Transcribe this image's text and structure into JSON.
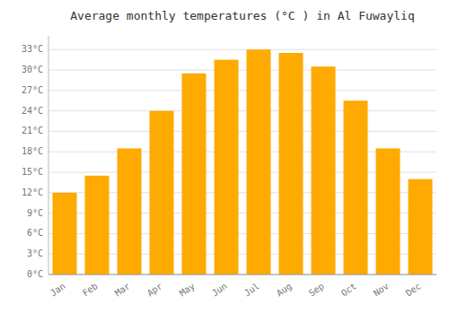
{
  "chart_data": {
    "type": "bar",
    "title": "Average monthly temperatures (°C ) in Al Fuwayliq",
    "categories": [
      "Jan",
      "Feb",
      "Mar",
      "Apr",
      "May",
      "Jun",
      "Jul",
      "Aug",
      "Sep",
      "Oct",
      "Nov",
      "Dec"
    ],
    "values": [
      12.0,
      14.5,
      18.5,
      24.0,
      29.5,
      31.5,
      33.0,
      32.5,
      30.5,
      25.5,
      18.5,
      14.0
    ],
    "color": "#FFAA00",
    "ylim": [
      0,
      35
    ],
    "yticks": [
      {
        "value": 0,
        "label": "0°C"
      },
      {
        "value": 3,
        "label": "3°C"
      },
      {
        "value": 6,
        "label": "6°C"
      },
      {
        "value": 9,
        "label": "9°C"
      },
      {
        "value": 12,
        "label": "12°C"
      },
      {
        "value": 15,
        "label": "15°C"
      },
      {
        "value": 18,
        "label": "18°C"
      },
      {
        "value": 21,
        "label": "21°C"
      },
      {
        "value": 24,
        "label": "24°C"
      },
      {
        "value": 27,
        "label": "27°C"
      },
      {
        "value": 30,
        "label": "30°C"
      },
      {
        "value": 33,
        "label": "33°C"
      }
    ],
    "grid": true
  }
}
